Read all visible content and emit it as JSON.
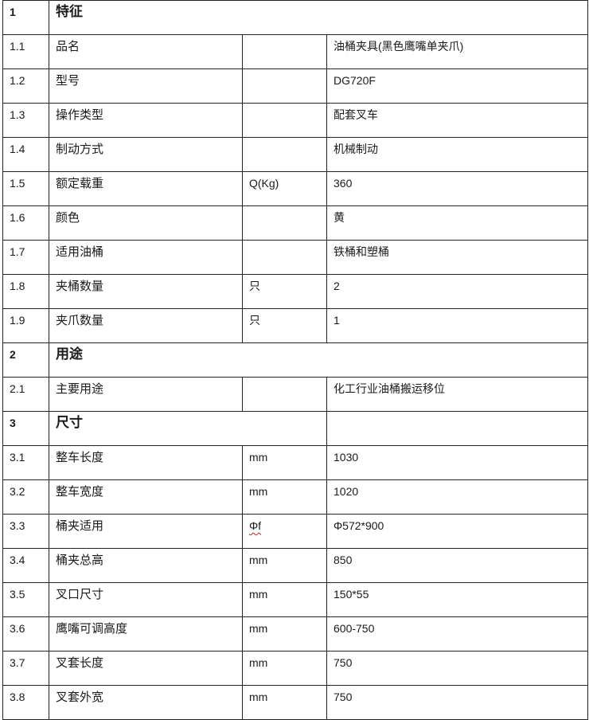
{
  "rows": [
    {
      "type": "section",
      "no": "1",
      "name": "特征",
      "span": "full"
    },
    {
      "no": "1.1",
      "name": "品名",
      "unit": "",
      "value": "油桶夹具(黑色鹰嘴单夹爪)"
    },
    {
      "no": "1.2",
      "name": "型号",
      "unit": "",
      "value": "DG720F"
    },
    {
      "no": "1.3",
      "name": "操作类型",
      "unit": "",
      "value": "配套叉车"
    },
    {
      "no": "1.4",
      "name": "制动方式",
      "unit": "",
      "value": "机械制动"
    },
    {
      "no": "1.5",
      "name": "额定载重",
      "unit": "Q(Kg)",
      "value": "360"
    },
    {
      "no": "1.6",
      "name": "颜色",
      "unit": "",
      "value": "黄"
    },
    {
      "no": "1.7",
      "name": "适用油桶",
      "unit": "",
      "value": "铁桶和塑桶"
    },
    {
      "no": "1.8",
      "name": "夹桶数量",
      "unit": "只",
      "value": "2"
    },
    {
      "no": "1.9",
      "name": "夹爪数量",
      "unit": "只",
      "value": "1"
    },
    {
      "type": "section",
      "no": "2",
      "name": "用途",
      "span": "full"
    },
    {
      "no": "2.1",
      "name": "主要用途",
      "unit": "",
      "value": "化工行业油桶搬运移位"
    },
    {
      "type": "section",
      "no": "3",
      "name": "尺寸",
      "span": "partial",
      "value": ""
    },
    {
      "no": "3.1",
      "name": "整车长度",
      "unit": "mm",
      "value": "1030"
    },
    {
      "no": "3.2",
      "name": "整车宽度",
      "unit": "mm",
      "value": "1020"
    },
    {
      "no": "3.3",
      "name": "桶夹适用",
      "unit": "Φf",
      "value": "Φ572*900"
    },
    {
      "no": "3.4",
      "name": "桶夹总高",
      "unit": "mm",
      "value": "850"
    },
    {
      "no": "3.5",
      "name": "叉口尺寸",
      "unit": "mm",
      "value": "150*55"
    },
    {
      "no": "3.6",
      "name": "鹰嘴可调高度",
      "unit": "mm",
      "value": "600-750"
    },
    {
      "no": "3.7",
      "name": "叉套长度",
      "unit": "mm",
      "value": "750"
    },
    {
      "no": "3.8",
      "name": "叉套外宽",
      "unit": "mm",
      "value": "750"
    }
  ]
}
